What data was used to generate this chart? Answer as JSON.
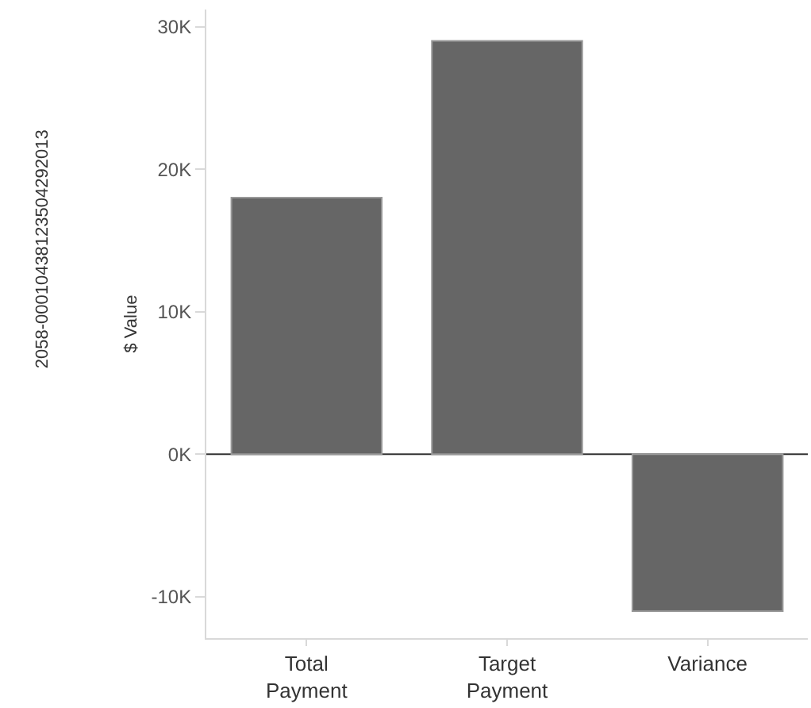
{
  "chart_data": {
    "type": "bar",
    "ylabel": "$ Value",
    "annotations": [
      "2058-00010438123504292013"
    ],
    "categories": [
      "Total Payment",
      "Target Payment",
      "Variance"
    ],
    "values": [
      18000,
      29000,
      -11000
    ],
    "color": "#666666",
    "ylim": [
      -12900,
      31200
    ],
    "yticks": [
      {
        "value": -10000,
        "label": "-10K"
      },
      {
        "value": 0,
        "label": "0K"
      },
      {
        "value": 10000,
        "label": "10K"
      },
      {
        "value": 20000,
        "label": "20K"
      },
      {
        "value": 30000,
        "label": "30K"
      }
    ],
    "ref_lines": [
      {
        "axis": "y",
        "value": 0,
        "color": "#333333"
      }
    ]
  }
}
